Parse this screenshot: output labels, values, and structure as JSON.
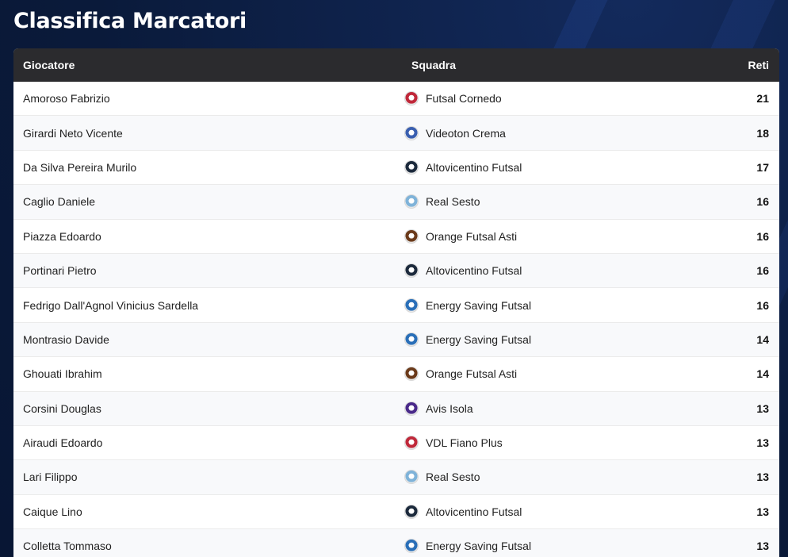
{
  "page": {
    "title": "Classifica Marcatori"
  },
  "table": {
    "headers": {
      "player": "Giocatore",
      "team": "Squadra",
      "goals": "Reti"
    },
    "rows": [
      {
        "player": "Amoroso Fabrizio",
        "team": "Futsal Cornedo",
        "goals": "21",
        "logo_color": "#c0283a",
        "logo_icon": "futsal-cornedo-logo"
      },
      {
        "player": "Girardi Neto Vicente",
        "team": "Videoton Crema",
        "goals": "18",
        "logo_color": "#3a5fb0",
        "logo_icon": "videoton-crema-logo"
      },
      {
        "player": "Da Silva Pereira Murilo",
        "team": "Altovicentino Futsal",
        "goals": "17",
        "logo_color": "#1c2a3c",
        "logo_icon": "altovicentino-futsal-logo"
      },
      {
        "player": "Caglio Daniele",
        "team": "Real Sesto",
        "goals": "16",
        "logo_color": "#7fb3d9",
        "logo_icon": "real-sesto-logo"
      },
      {
        "player": "Piazza Edoardo",
        "team": "Orange Futsal Asti",
        "goals": "16",
        "logo_color": "#6b3a1a",
        "logo_icon": "orange-futsal-asti-logo"
      },
      {
        "player": "Portinari Pietro",
        "team": "Altovicentino Futsal",
        "goals": "16",
        "logo_color": "#1c2a3c",
        "logo_icon": "altovicentino-futsal-logo"
      },
      {
        "player": "Fedrigo Dall'Agnol Vinicius Sardella",
        "team": "Energy Saving Futsal",
        "goals": "16",
        "logo_color": "#2a6fb8",
        "logo_icon": "energy-saving-futsal-logo"
      },
      {
        "player": "Montrasio Davide",
        "team": "Energy Saving Futsal",
        "goals": "14",
        "logo_color": "#2a6fb8",
        "logo_icon": "energy-saving-futsal-logo"
      },
      {
        "player": "Ghouati Ibrahim",
        "team": "Orange Futsal Asti",
        "goals": "14",
        "logo_color": "#6b3a1a",
        "logo_icon": "orange-futsal-asti-logo"
      },
      {
        "player": "Corsini Douglas",
        "team": "Avis Isola",
        "goals": "13",
        "logo_color": "#4a2a8a",
        "logo_icon": "avis-isola-logo"
      },
      {
        "player": "Airaudi Edoardo",
        "team": "VDL Fiano Plus",
        "goals": "13",
        "logo_color": "#c0283a",
        "logo_icon": "vdl-fiano-plus-logo"
      },
      {
        "player": "Lari Filippo",
        "team": "Real Sesto",
        "goals": "13",
        "logo_color": "#7fb3d9",
        "logo_icon": "real-sesto-logo"
      },
      {
        "player": "Caique Lino",
        "team": "Altovicentino Futsal",
        "goals": "13",
        "logo_color": "#1c2a3c",
        "logo_icon": "altovicentino-futsal-logo"
      },
      {
        "player": "Colletta Tommaso",
        "team": "Energy Saving Futsal",
        "goals": "13",
        "logo_color": "#2a6fb8",
        "logo_icon": "energy-saving-futsal-logo"
      }
    ]
  }
}
